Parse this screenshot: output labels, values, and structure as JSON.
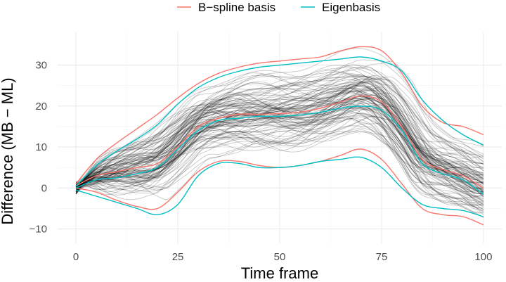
{
  "chart_data": {
    "type": "line",
    "title": "",
    "xlabel": "Time frame",
    "ylabel": "Difference (MB − ML)",
    "xlim": [
      -4.5,
      104.5
    ],
    "ylim": [
      -13.5,
      38
    ],
    "x_ticks": [
      0,
      25,
      50,
      75,
      100
    ],
    "x_tick_labels": [
      "0",
      "25",
      "50",
      "75",
      "100"
    ],
    "y_ticks": [
      -10,
      0,
      10,
      20,
      30
    ],
    "y_tick_labels": [
      "−10",
      "0",
      "10",
      "20",
      "30"
    ],
    "grid": true,
    "legend_position": "top",
    "background_curves": {
      "count": 110,
      "color": "#000000",
      "description_hidden": true
    },
    "series": [
      {
        "name": "B−spline basis",
        "color": "#F8766D",
        "role": "upper",
        "x": [
          0,
          5,
          10,
          15,
          20,
          25,
          30,
          35,
          40,
          45,
          50,
          55,
          60,
          65,
          70,
          75,
          80,
          85,
          90,
          95,
          100
        ],
        "y": [
          1,
          7,
          11,
          14.5,
          18,
          22,
          25.5,
          28,
          29.5,
          30.5,
          31,
          31.5,
          32,
          33.5,
          34.5,
          33.5,
          28,
          20,
          16,
          15,
          13
        ]
      },
      {
        "name": "B−spline basis",
        "color": "#F8766D",
        "role": "mean",
        "x": [
          0,
          5,
          10,
          15,
          20,
          25,
          30,
          35,
          40,
          45,
          50,
          55,
          60,
          65,
          70,
          75,
          80,
          85,
          90,
          95,
          100
        ],
        "y": [
          0.5,
          3,
          4,
          5,
          6,
          10,
          15,
          17,
          18,
          18,
          18.2,
          18.5,
          19.5,
          21,
          22.5,
          21,
          15,
          7,
          4.5,
          3,
          0
        ]
      },
      {
        "name": "B−spline basis",
        "color": "#F8766D",
        "role": "lower",
        "x": [
          0,
          5,
          10,
          15,
          20,
          25,
          30,
          35,
          40,
          45,
          50,
          55,
          60,
          65,
          70,
          75,
          80,
          85,
          90,
          95,
          100
        ],
        "y": [
          0,
          -1,
          -3,
          -4.5,
          -5,
          -1,
          4,
          6.5,
          6.5,
          5.5,
          5,
          5.5,
          6.5,
          8,
          9.5,
          7,
          1,
          -5,
          -6.5,
          -7,
          -9
        ]
      },
      {
        "name": "Eigenbasis",
        "color": "#00BFC4",
        "role": "upper",
        "x": [
          0,
          5,
          10,
          15,
          20,
          25,
          30,
          35,
          40,
          45,
          50,
          55,
          60,
          65,
          70,
          75,
          80,
          85,
          90,
          95,
          100
        ],
        "y": [
          0.5,
          5.5,
          9,
          12,
          15.5,
          20.5,
          24.5,
          27,
          28.5,
          29.5,
          30,
          30.5,
          31,
          31.5,
          32,
          31,
          28.5,
          21.5,
          16.5,
          13,
          10.5
        ]
      },
      {
        "name": "Eigenbasis",
        "color": "#00BFC4",
        "role": "mean",
        "x": [
          0,
          5,
          10,
          15,
          20,
          25,
          30,
          35,
          40,
          45,
          50,
          55,
          60,
          65,
          70,
          75,
          80,
          85,
          90,
          95,
          100
        ],
        "y": [
          0,
          2,
          2.5,
          3.5,
          5,
          9.5,
          14,
          16.5,
          17,
          17.5,
          17.5,
          17.8,
          18.5,
          19.5,
          20,
          19,
          14,
          6,
          3.5,
          2,
          -1.5
        ]
      },
      {
        "name": "Eigenbasis",
        "color": "#00BFC4",
        "role": "lower",
        "x": [
          0,
          5,
          10,
          15,
          20,
          25,
          30,
          35,
          40,
          45,
          50,
          55,
          60,
          65,
          70,
          75,
          80,
          85,
          90,
          95,
          100
        ],
        "y": [
          -0.5,
          -2,
          -3.5,
          -5,
          -6.5,
          -4,
          3,
          6,
          6,
          5,
          5,
          5.5,
          6.5,
          7,
          7.5,
          5,
          0,
          -4,
          -5,
          -5.5,
          -7
        ]
      }
    ],
    "legend": [
      {
        "label": "B−spline basis",
        "color": "#F8766D"
      },
      {
        "label": "Eigenbasis",
        "color": "#00BFC4"
      }
    ]
  }
}
